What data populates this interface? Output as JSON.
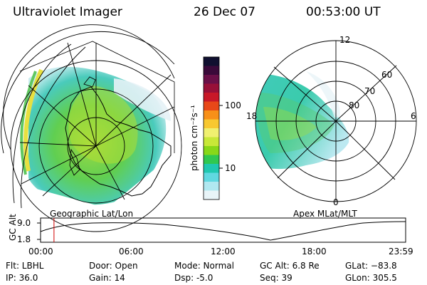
{
  "header": {
    "instrument": "Ultraviolet Imager",
    "date": "26 Dec 07",
    "time": "00:53:00 UT"
  },
  "colorbar": {
    "label": "photon cm⁻²s⁻¹",
    "ticks": [
      "100",
      "10"
    ],
    "colors": [
      "#101030",
      "#3a0a3a",
      "#6a1048",
      "#981038",
      "#c81828",
      "#e84818",
      "#f89018",
      "#f8c830",
      "#f0f070",
      "#c8e838",
      "#88d818",
      "#30c850",
      "#20c8b0",
      "#60d8e0",
      "#b0e8f0",
      "#e8f4f8"
    ]
  },
  "geo_panel": {
    "label": "Geographic Lat/Lon"
  },
  "apex_panel": {
    "label": "Apex MLat/MLT",
    "mlt_labels": {
      "top": "12",
      "right": "6",
      "left": "18",
      "bottom": "0"
    },
    "lat_labels": [
      "60",
      "70",
      "80"
    ]
  },
  "altitude_plot": {
    "ylabel": "GC Alt",
    "yticks": [
      "9.0",
      "1.8"
    ],
    "xticks": [
      "00:00",
      "06:00",
      "12:00",
      "18:00",
      "23:59"
    ],
    "current_time_hours": 0.883,
    "marker_color": "#d00000"
  },
  "info": {
    "flt": "Flt: LBHL",
    "ip": "IP: 36.0",
    "door": "Door: Open",
    "gain": "Gain: 14",
    "mode": "Mode: Normal",
    "dsp": "Dsp:     -5.0",
    "gc_alt": "GC Alt: 6.8 Re",
    "seq": "Seq: 39",
    "glat": "GLat: −83.8",
    "glon": "GLon: 305.5"
  }
}
